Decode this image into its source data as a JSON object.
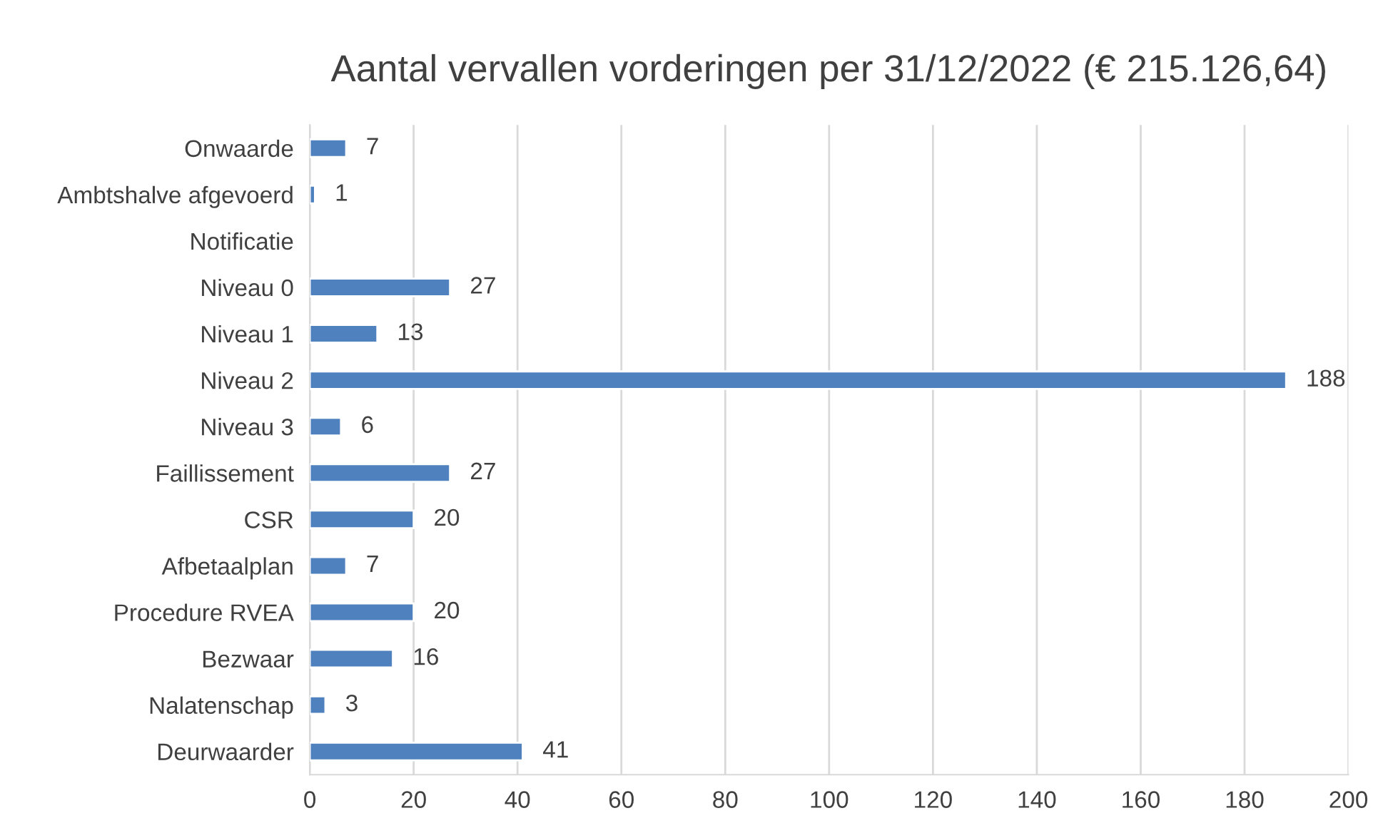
{
  "chart_data": {
    "type": "bar",
    "orientation": "horizontal",
    "title": "Aantal vervallen vorderingen per 31/12/2022 (€ 215.126,64)",
    "categories": [
      "Onwaarde",
      "Ambtshalve afgevoerd",
      "Notificatie",
      "Niveau 0",
      "Niveau 1",
      "Niveau 2",
      "Niveau 3",
      "Faillissement",
      "CSR",
      "Afbetaalplan",
      "Procedure RVEA",
      "Bezwaar",
      "Nalatenschap",
      "Deurwaarder"
    ],
    "values": [
      7,
      1,
      null,
      27,
      13,
      188,
      6,
      27,
      20,
      7,
      20,
      16,
      3,
      41
    ],
    "color": "#4e81bd",
    "xlim": [
      0,
      200
    ],
    "xticks": [
      0,
      20,
      40,
      60,
      80,
      100,
      120,
      140,
      160,
      180,
      200
    ],
    "grid": "x",
    "data_labels": true
  }
}
